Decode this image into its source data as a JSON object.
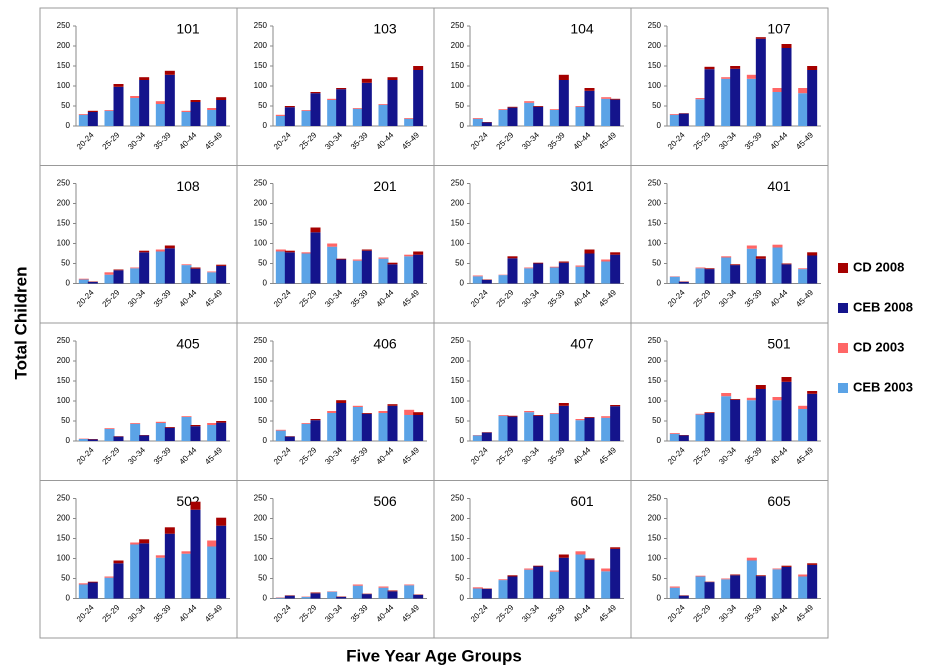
{
  "y_label": "Total Children",
  "x_label": "Five Year Age Groups",
  "chart_data": [
    {
      "type": "bar",
      "title": "101",
      "categories": [
        "20-24",
        "25-29",
        "30-34",
        "35-39",
        "40-44",
        "45-49"
      ],
      "ylim": [
        0,
        250
      ],
      "yticks": [
        0,
        50,
        100,
        150,
        200,
        250
      ],
      "series": [
        {
          "name": "CEB 2003",
          "color": "#5ba3e6",
          "values": [
            28,
            38,
            70,
            55,
            35,
            40
          ]
        },
        {
          "name": "CD 2003",
          "color": "#ff6666",
          "values": [
            2,
            2,
            5,
            7,
            3,
            5
          ]
        },
        {
          "name": "CEB 2008",
          "color": "#14148c",
          "values": [
            35,
            98,
            115,
            128,
            60,
            65
          ]
        },
        {
          "name": "CD 2008",
          "color": "#a50000",
          "values": [
            3,
            7,
            7,
            10,
            5,
            7
          ]
        }
      ]
    },
    {
      "type": "bar",
      "title": "103",
      "categories": [
        "20-24",
        "25-29",
        "30-34",
        "35-39",
        "40-44",
        "45-49"
      ],
      "ylim": [
        0,
        250
      ],
      "yticks": [
        0,
        50,
        100,
        150,
        200,
        250
      ],
      "series": [
        {
          "name": "CEB 2003",
          "color": "#5ba3e6",
          "values": [
            25,
            38,
            65,
            43,
            53,
            18
          ]
        },
        {
          "name": "CD 2003",
          "color": "#ff6666",
          "values": [
            3,
            2,
            3,
            2,
            2,
            2
          ]
        },
        {
          "name": "CEB 2008",
          "color": "#14148c",
          "values": [
            47,
            82,
            92,
            108,
            115,
            140
          ]
        },
        {
          "name": "CD 2008",
          "color": "#a50000",
          "values": [
            3,
            3,
            3,
            10,
            7,
            10
          ]
        }
      ]
    },
    {
      "type": "bar",
      "title": "104",
      "categories": [
        "20-24",
        "25-29",
        "30-34",
        "35-39",
        "40-44",
        "45-49"
      ],
      "ylim": [
        0,
        250
      ],
      "yticks": [
        0,
        50,
        100,
        150,
        200,
        250
      ],
      "series": [
        {
          "name": "CEB 2003",
          "color": "#5ba3e6",
          "values": [
            18,
            40,
            58,
            40,
            48,
            68
          ]
        },
        {
          "name": "CD 2003",
          "color": "#ff6666",
          "values": [
            2,
            2,
            4,
            2,
            2,
            4
          ]
        },
        {
          "name": "CEB 2008",
          "color": "#14148c",
          "values": [
            9,
            46,
            48,
            115,
            88,
            66
          ]
        },
        {
          "name": "CD 2008",
          "color": "#a50000",
          "values": [
            1,
            2,
            2,
            13,
            7,
            2
          ]
        }
      ]
    },
    {
      "type": "bar",
      "title": "107",
      "categories": [
        "20-24",
        "25-29",
        "30-34",
        "35-39",
        "40-44",
        "45-49"
      ],
      "ylim": [
        0,
        250
      ],
      "yticks": [
        0,
        50,
        100,
        150,
        200,
        250
      ],
      "series": [
        {
          "name": "CEB 2003",
          "color": "#5ba3e6",
          "values": [
            28,
            67,
            118,
            118,
            85,
            82
          ]
        },
        {
          "name": "CD 2003",
          "color": "#ff6666",
          "values": [
            2,
            3,
            4,
            10,
            10,
            13
          ]
        },
        {
          "name": "CEB 2008",
          "color": "#14148c",
          "values": [
            31,
            142,
            143,
            218,
            195,
            140
          ]
        },
        {
          "name": "CD 2008",
          "color": "#a50000",
          "values": [
            1,
            6,
            7,
            4,
            10,
            10
          ]
        }
      ]
    },
    {
      "type": "bar",
      "title": "108",
      "categories": [
        "20-24",
        "25-29",
        "30-34",
        "35-39",
        "40-44",
        "45-49"
      ],
      "ylim": [
        0,
        250
      ],
      "yticks": [
        0,
        50,
        100,
        150,
        200,
        250
      ],
      "series": [
        {
          "name": "CEB 2003",
          "color": "#5ba3e6",
          "values": [
            10,
            22,
            38,
            80,
            46,
            28
          ]
        },
        {
          "name": "CD 2003",
          "color": "#ff6666",
          "values": [
            2,
            6,
            2,
            5,
            2,
            2
          ]
        },
        {
          "name": "CEB 2008",
          "color": "#14148c",
          "values": [
            4,
            33,
            78,
            88,
            37,
            44
          ]
        },
        {
          "name": "CD 2008",
          "color": "#a50000",
          "values": [
            1,
            2,
            4,
            7,
            3,
            3
          ]
        }
      ]
    },
    {
      "type": "bar",
      "title": "201",
      "categories": [
        "20-24",
        "25-29",
        "30-34",
        "35-39",
        "40-44",
        "45-49"
      ],
      "ylim": [
        0,
        250
      ],
      "yticks": [
        0,
        50,
        100,
        150,
        200,
        250
      ],
      "series": [
        {
          "name": "CEB 2003",
          "color": "#5ba3e6",
          "values": [
            80,
            75,
            92,
            57,
            62,
            68
          ]
        },
        {
          "name": "CD 2003",
          "color": "#ff6666",
          "values": [
            5,
            3,
            8,
            3,
            3,
            4
          ]
        },
        {
          "name": "CEB 2008",
          "color": "#14148c",
          "values": [
            78,
            128,
            60,
            82,
            48,
            72
          ]
        },
        {
          "name": "CD 2008",
          "color": "#a50000",
          "values": [
            4,
            12,
            2,
            3,
            4,
            8
          ]
        }
      ]
    },
    {
      "type": "bar",
      "title": "301",
      "categories": [
        "20-24",
        "25-29",
        "30-34",
        "35-39",
        "40-44",
        "45-49"
      ],
      "ylim": [
        0,
        250
      ],
      "yticks": [
        0,
        50,
        100,
        150,
        200,
        250
      ],
      "series": [
        {
          "name": "CEB 2003",
          "color": "#5ba3e6",
          "values": [
            18,
            21,
            38,
            40,
            42,
            55
          ]
        },
        {
          "name": "CD 2003",
          "color": "#ff6666",
          "values": [
            2,
            1,
            2,
            2,
            3,
            5
          ]
        },
        {
          "name": "CEB 2008",
          "color": "#14148c",
          "values": [
            9,
            63,
            50,
            52,
            75,
            72
          ]
        },
        {
          "name": "CD 2008",
          "color": "#a50000",
          "values": [
            1,
            5,
            2,
            3,
            10,
            6
          ]
        }
      ]
    },
    {
      "type": "bar",
      "title": "401",
      "categories": [
        "20-24",
        "25-29",
        "30-34",
        "35-39",
        "40-44",
        "45-49"
      ],
      "ylim": [
        0,
        250
      ],
      "yticks": [
        0,
        50,
        100,
        150,
        200,
        250
      ],
      "series": [
        {
          "name": "CEB 2003",
          "color": "#5ba3e6",
          "values": [
            17,
            38,
            65,
            87,
            90,
            36
          ]
        },
        {
          "name": "CD 2003",
          "color": "#ff6666",
          "values": [
            1,
            2,
            3,
            8,
            7,
            2
          ]
        },
        {
          "name": "CEB 2008",
          "color": "#14148c",
          "values": [
            4,
            36,
            46,
            62,
            48,
            70
          ]
        },
        {
          "name": "CD 2008",
          "color": "#a50000",
          "values": [
            1,
            2,
            2,
            6,
            2,
            8
          ]
        }
      ]
    },
    {
      "type": "bar",
      "title": "405",
      "categories": [
        "20-24",
        "25-29",
        "30-34",
        "35-39",
        "40-44",
        "45-49"
      ],
      "ylim": [
        0,
        250
      ],
      "yticks": [
        0,
        50,
        100,
        150,
        200,
        250
      ],
      "series": [
        {
          "name": "CEB 2003",
          "color": "#5ba3e6",
          "values": [
            5,
            30,
            43,
            45,
            60,
            40
          ]
        },
        {
          "name": "CD 2003",
          "color": "#ff6666",
          "values": [
            1,
            2,
            2,
            3,
            2,
            5
          ]
        },
        {
          "name": "CEB 2008",
          "color": "#14148c",
          "values": [
            4,
            11,
            14,
            33,
            37,
            46
          ]
        },
        {
          "name": "CD 2008",
          "color": "#a50000",
          "values": [
            1,
            1,
            1,
            2,
            3,
            4
          ]
        }
      ]
    },
    {
      "type": "bar",
      "title": "406",
      "categories": [
        "20-24",
        "25-29",
        "30-34",
        "35-39",
        "40-44",
        "45-49"
      ],
      "ylim": [
        0,
        250
      ],
      "yticks": [
        0,
        50,
        100,
        150,
        200,
        250
      ],
      "series": [
        {
          "name": "CEB 2003",
          "color": "#5ba3e6",
          "values": [
            26,
            43,
            70,
            85,
            70,
            65
          ]
        },
        {
          "name": "CD 2003",
          "color": "#ff6666",
          "values": [
            2,
            2,
            5,
            3,
            5,
            13
          ]
        },
        {
          "name": "CEB 2008",
          "color": "#14148c",
          "values": [
            11,
            52,
            95,
            68,
            88,
            65
          ]
        },
        {
          "name": "CD 2008",
          "color": "#a50000",
          "values": [
            1,
            3,
            7,
            2,
            4,
            7
          ]
        }
      ]
    },
    {
      "type": "bar",
      "title": "407",
      "categories": [
        "20-24",
        "25-29",
        "30-34",
        "35-39",
        "40-44",
        "45-49"
      ],
      "ylim": [
        0,
        250
      ],
      "yticks": [
        0,
        50,
        100,
        150,
        200,
        250
      ],
      "series": [
        {
          "name": "CEB 2003",
          "color": "#5ba3e6",
          "values": [
            14,
            63,
            72,
            68,
            52,
            58
          ]
        },
        {
          "name": "CD 2003",
          "color": "#ff6666",
          "values": [
            1,
            2,
            3,
            2,
            3,
            4
          ]
        },
        {
          "name": "CEB 2008",
          "color": "#14148c",
          "values": [
            21,
            61,
            63,
            88,
            58,
            87
          ]
        },
        {
          "name": "CD 2008",
          "color": "#a50000",
          "values": [
            1,
            2,
            2,
            7,
            2,
            3
          ]
        }
      ]
    },
    {
      "type": "bar",
      "title": "501",
      "categories": [
        "20-24",
        "25-29",
        "30-34",
        "35-39",
        "40-44",
        "45-49"
      ],
      "ylim": [
        0,
        250
      ],
      "yticks": [
        0,
        50,
        100,
        150,
        200,
        250
      ],
      "series": [
        {
          "name": "CEB 2003",
          "color": "#5ba3e6",
          "values": [
            18,
            66,
            112,
            102,
            102,
            80
          ]
        },
        {
          "name": "CD 2003",
          "color": "#ff6666",
          "values": [
            2,
            2,
            8,
            6,
            8,
            8
          ]
        },
        {
          "name": "CEB 2008",
          "color": "#14148c",
          "values": [
            14,
            70,
            103,
            130,
            148,
            118
          ]
        },
        {
          "name": "CD 2008",
          "color": "#a50000",
          "values": [
            1,
            2,
            2,
            10,
            12,
            7
          ]
        }
      ]
    },
    {
      "type": "bar",
      "title": "502",
      "categories": [
        "20-24",
        "25-29",
        "30-34",
        "35-39",
        "40-44",
        "45-49"
      ],
      "ylim": [
        0,
        250
      ],
      "yticks": [
        0,
        50,
        100,
        150,
        200,
        250
      ],
      "series": [
        {
          "name": "CEB 2003",
          "color": "#5ba3e6",
          "values": [
            35,
            52,
            135,
            102,
            112,
            130
          ]
        },
        {
          "name": "CD 2003",
          "color": "#ff6666",
          "values": [
            3,
            3,
            5,
            6,
            6,
            15
          ]
        },
        {
          "name": "CEB 2008",
          "color": "#14148c",
          "values": [
            40,
            88,
            138,
            162,
            222,
            182
          ]
        },
        {
          "name": "CD 2008",
          "color": "#a50000",
          "values": [
            2,
            7,
            10,
            16,
            20,
            20
          ]
        }
      ]
    },
    {
      "type": "bar",
      "title": "506",
      "categories": [
        "20-24",
        "25-29",
        "30-34",
        "35-39",
        "40-44",
        "45-49"
      ],
      "ylim": [
        0,
        250
      ],
      "yticks": [
        0,
        50,
        100,
        150,
        200,
        250
      ],
      "series": [
        {
          "name": "CEB 2003",
          "color": "#5ba3e6",
          "values": [
            2,
            4,
            17,
            32,
            27,
            33
          ]
        },
        {
          "name": "CD 2003",
          "color": "#ff6666",
          "values": [
            1,
            1,
            1,
            3,
            3,
            2
          ]
        },
        {
          "name": "CEB 2008",
          "color": "#14148c",
          "values": [
            7,
            13,
            4,
            11,
            18,
            9
          ]
        },
        {
          "name": "CD 2008",
          "color": "#a50000",
          "values": [
            1,
            2,
            1,
            1,
            2,
            1
          ]
        }
      ]
    },
    {
      "type": "bar",
      "title": "601",
      "categories": [
        "20-24",
        "25-29",
        "30-34",
        "35-39",
        "40-44",
        "45-49"
      ],
      "ylim": [
        0,
        250
      ],
      "yticks": [
        0,
        50,
        100,
        150,
        200,
        250
      ],
      "series": [
        {
          "name": "CEB 2003",
          "color": "#5ba3e6",
          "values": [
            25,
            46,
            72,
            67,
            110,
            68
          ]
        },
        {
          "name": "CD 2003",
          "color": "#ff6666",
          "values": [
            3,
            2,
            3,
            3,
            8,
            7
          ]
        },
        {
          "name": "CEB 2008",
          "color": "#14148c",
          "values": [
            24,
            55,
            80,
            102,
            97,
            124
          ]
        },
        {
          "name": "CD 2008",
          "color": "#a50000",
          "values": [
            1,
            3,
            2,
            8,
            3,
            4
          ]
        }
      ]
    },
    {
      "type": "bar",
      "title": "605",
      "categories": [
        "20-24",
        "25-29",
        "30-34",
        "35-39",
        "40-44",
        "45-49"
      ],
      "ylim": [
        0,
        250
      ],
      "yticks": [
        0,
        50,
        100,
        150,
        200,
        250
      ],
      "series": [
        {
          "name": "CEB 2003",
          "color": "#5ba3e6",
          "values": [
            27,
            55,
            48,
            95,
            73,
            55
          ]
        },
        {
          "name": "CD 2003",
          "color": "#ff6666",
          "values": [
            3,
            2,
            2,
            7,
            2,
            5
          ]
        },
        {
          "name": "CEB 2008",
          "color": "#14148c",
          "values": [
            7,
            41,
            58,
            56,
            79,
            84
          ]
        },
        {
          "name": "CD 2008",
          "color": "#a50000",
          "values": [
            1,
            1,
            2,
            2,
            3,
            4
          ]
        }
      ]
    }
  ]
}
